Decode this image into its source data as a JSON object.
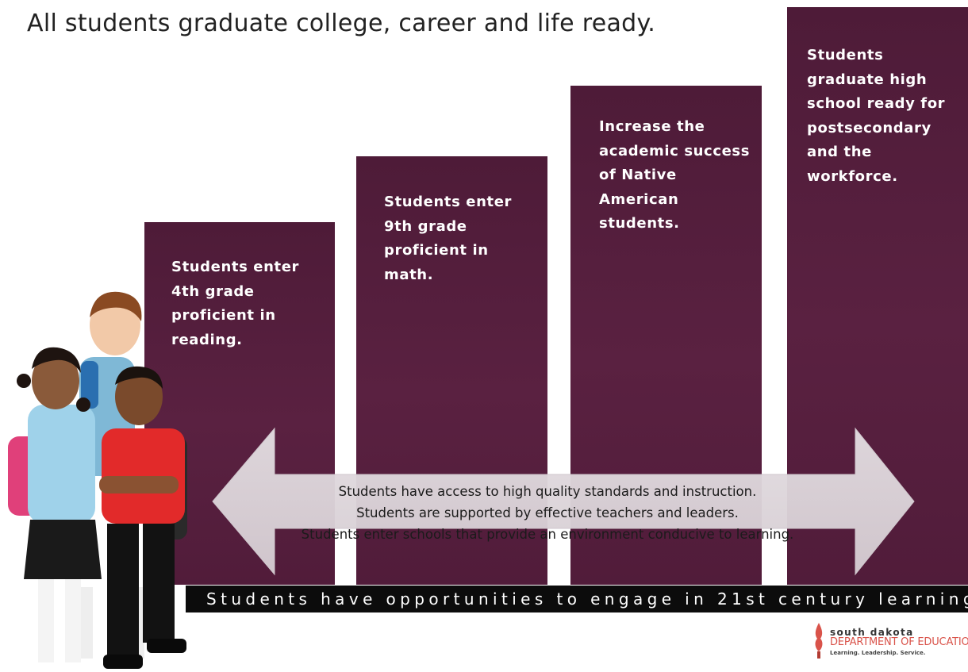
{
  "title": "All students graduate college, career and life ready.",
  "steps": [
    "Students enter 4th grade proficient in reading.",
    "Students enter 9th grade proficient in math.",
    "Increase the academic success of Native American students.",
    "Students graduate high school ready for postsecondary and the workforce."
  ],
  "arrow_lines": [
    "Students have access to high quality standards and instruction.",
    "Students are supported by effective teachers and leaders.",
    "Students enter schools that provide an environment conducive to learning."
  ],
  "banner": "Students have opportunities to engage in 21st century learning.",
  "logo": {
    "line1": "south dakota",
    "line2": "DEPARTMENT OF EDUCATIO",
    "line3": "Learning. Leadership. Service."
  },
  "colors": {
    "step_fill": "#561f3e",
    "arrow_fill": "#ddd6da",
    "banner_fill": "#0c0c0c",
    "logo_accent": "#d9534a"
  }
}
